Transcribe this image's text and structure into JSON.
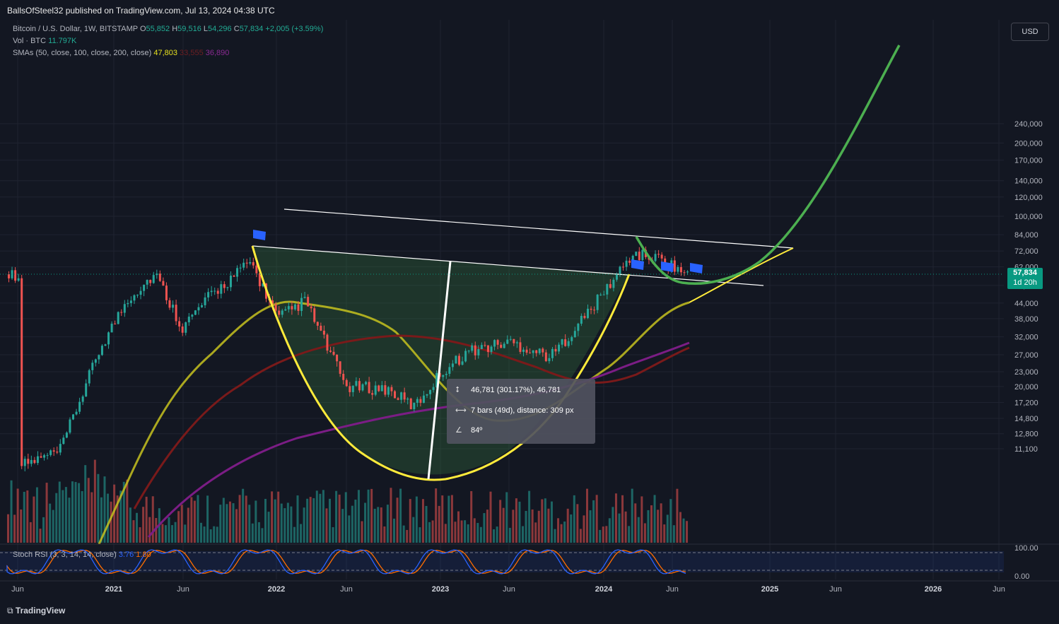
{
  "header": {
    "published": "BallsOfSteel32 published on TradingView.com, Jul 13, 2024 04:38 UTC"
  },
  "legend": {
    "symbol": "Bitcoin / U.S. Dollar, 1W, BITSTAMP",
    "o_label": "O",
    "o": "55,852",
    "h_label": "H",
    "h": "59,516",
    "l_label": "L",
    "l": "54,296",
    "c_label": "C",
    "c": "57,834",
    "change": "+2,005 (+3.59%)",
    "vol_label": "Vol · BTC",
    "vol": "11.797K",
    "sma_label": "SMAs (50, close, 100, close, 200, close)",
    "sma50": "47,803",
    "sma100": "33,555",
    "sma200": "36,890"
  },
  "currency_button": "USD",
  "last_price": {
    "value": "57,834",
    "countdown": "1d 20h"
  },
  "measure_tooltip": {
    "line1": "46,781 (301.17%), 46,781",
    "line2": "7 bars (49d), distance: 309 px",
    "line3": "84º"
  },
  "rsi_legend": {
    "label": "Stoch RSI (3, 3, 14, 14, close)",
    "k": "3.76",
    "d": "1.80"
  },
  "footer": {
    "brand": "TradingView"
  },
  "colors": {
    "background": "#131722",
    "up": "#26a69a",
    "down": "#ef5350",
    "sma50": "#c7c21f",
    "sma100": "#7a1a1a",
    "sma200": "#7b1d85",
    "cup": "#ffeb3b",
    "projection": "#4caf50",
    "trendline": "#ffffff",
    "rsi_k": "#2962ff",
    "rsi_d": "#ff6d00"
  },
  "chart_data": {
    "type": "candlestick",
    "title": "Bitcoin / U.S. Dollar, 1W, BITSTAMP",
    "y_scale": "log",
    "y_ticks": [
      240000,
      200000,
      170000,
      140000,
      120000,
      100000,
      84000,
      72000,
      62000,
      52000,
      44000,
      38000,
      32000,
      27000,
      23000,
      20000,
      17200,
      14800,
      12800,
      11100
    ],
    "x_ticks": [
      "Jun",
      "2021",
      "Jun",
      "2022",
      "Jun",
      "2023",
      "Jun",
      "2024",
      "Jun",
      "2025",
      "Jun",
      "2026",
      "Jun"
    ],
    "rsi_ticks": [
      100,
      0
    ],
    "key_prices": {
      "high_2021_apr": 64800,
      "high_2021_nov": 69000,
      "low_2022_nov": 15500,
      "high_2024_mar": 73800,
      "current": 57834
    },
    "close_path": [
      [
        "2020-06",
        9400
      ],
      [
        "2020-09",
        10800
      ],
      [
        "2020-12",
        29000
      ],
      [
        "2021-02",
        46000
      ],
      [
        "2021-04",
        58000
      ],
      [
        "2021-06",
        35000
      ],
      [
        "2021-08",
        47000
      ],
      [
        "2021-11",
        65000
      ],
      [
        "2022-01",
        38000
      ],
      [
        "2022-03",
        45000
      ],
      [
        "2022-06",
        20000
      ],
      [
        "2022-09",
        19500
      ],
      [
        "2022-11",
        16500
      ],
      [
        "2023-01",
        23000
      ],
      [
        "2023-03",
        28000
      ],
      [
        "2023-06",
        30500
      ],
      [
        "2023-09",
        26500
      ],
      [
        "2023-12",
        42000
      ],
      [
        "2024-03",
        70000
      ],
      [
        "2024-05",
        67000
      ],
      [
        "2024-07",
        57834
      ]
    ],
    "projection": [
      [
        "2024-07",
        56000
      ],
      [
        "2024-10",
        62000
      ],
      [
        "2025-04",
        120000
      ],
      [
        "2025-09",
        240000
      ]
    ]
  }
}
